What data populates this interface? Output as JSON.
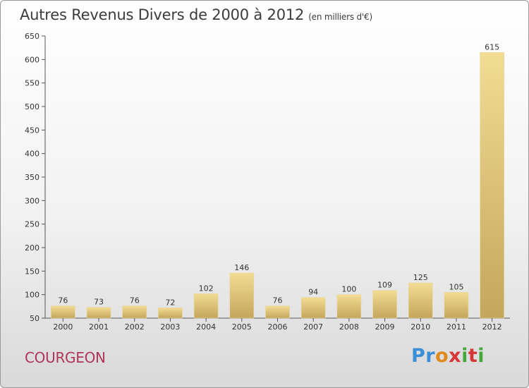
{
  "header": {
    "title": "Autres Revenus Divers de 2000 à 2012",
    "subtitle": "(en milliers d'€)"
  },
  "footer": {
    "city": "COURGEON",
    "logo": [
      "Pr",
      "o",
      "x",
      "i",
      "t",
      "i"
    ]
  },
  "colors": {
    "bar_top": "#f2dc94",
    "bar_bottom": "#c4a65c",
    "city": "#b0365a"
  },
  "chart_data": {
    "type": "bar",
    "title": "Autres Revenus Divers de 2000 à 2012",
    "subtitle": "(en milliers d'€)",
    "categories": [
      "2000",
      "2001",
      "2002",
      "2003",
      "2004",
      "2005",
      "2006",
      "2007",
      "2008",
      "2009",
      "2010",
      "2011",
      "2012"
    ],
    "values": [
      76,
      73,
      76,
      72,
      102,
      146,
      76,
      94,
      100,
      109,
      125,
      105,
      615
    ],
    "ylim": [
      50,
      650
    ],
    "yticks": [
      50,
      100,
      150,
      200,
      250,
      300,
      350,
      400,
      450,
      500,
      550,
      600,
      650
    ],
    "grid": false,
    "legend": "none"
  }
}
